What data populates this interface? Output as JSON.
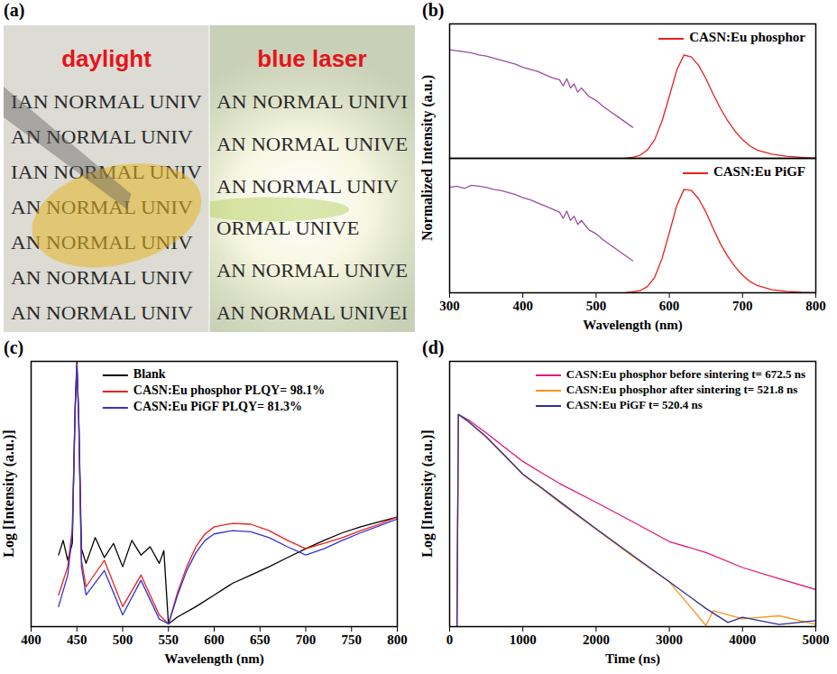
{
  "chart_data": [
    {
      "type": "photo",
      "panel_label": "(a)",
      "annotations": [
        "daylight",
        "blue laser"
      ],
      "left_text": [
        "IAN NORMAL UNIV",
        "AN NORMAL UNIV",
        "IAN NORMAL UNIV",
        "AN NORMAL UNIV",
        "AN NORMAL UNIV",
        "AN NORMAL UNIV",
        "AN NORMAL UNIV"
      ],
      "right_text": [
        "AN NORMAL UNIVI",
        "AN NORMAL UNIVE",
        "AN NORMAL UNIV",
        "ORMAL UNIVE",
        "AN NORMAL UNIVE",
        "AN NORMAL UNIVEI"
      ]
    },
    {
      "type": "line",
      "panel_label": "(b)",
      "xlabel": "Wavelength (nm)",
      "ylabel": "Normalized Intensity (a.u.)",
      "xlim": [
        300,
        800
      ],
      "xticks": [
        300,
        400,
        500,
        600,
        700,
        800
      ],
      "ylim": [
        0,
        1.3
      ],
      "tick_labels": "x",
      "legend": "upper right",
      "subplots": [
        {
          "series": [
            {
              "color": "#9b4f9e",
              "x": [
                300,
                310,
                320,
                330,
                340,
                350,
                360,
                370,
                380,
                390,
                400,
                410,
                420,
                430,
                440,
                450,
                455,
                460,
                465,
                470,
                475,
                480,
                490,
                500,
                510,
                520,
                530,
                540,
                550
              ],
              "values": [
                1.05,
                1.04,
                1.03,
                1.02,
                1.0,
                0.99,
                0.97,
                0.95,
                0.93,
                0.91,
                0.88,
                0.86,
                0.84,
                0.81,
                0.78,
                0.76,
                0.7,
                0.77,
                0.68,
                0.72,
                0.64,
                0.68,
                0.6,
                0.56,
                0.5,
                0.45,
                0.4,
                0.35,
                0.3
              ]
            },
            {
              "name": "CASN:Eu phosphor",
              "color": "#e8211e",
              "x": [
                540,
                550,
                560,
                570,
                580,
                590,
                600,
                610,
                620,
                630,
                640,
                650,
                660,
                670,
                680,
                690,
                700,
                710,
                720,
                740,
                760,
                780,
                800
              ],
              "values": [
                0,
                0.01,
                0.03,
                0.08,
                0.18,
                0.36,
                0.6,
                0.85,
                1.0,
                0.98,
                0.9,
                0.77,
                0.62,
                0.48,
                0.36,
                0.26,
                0.18,
                0.12,
                0.08,
                0.04,
                0.02,
                0.01,
                0
              ]
            }
          ]
        },
        {
          "series": [
            {
              "color": "#9b4f9e",
              "x": [
                300,
                310,
                320,
                330,
                340,
                350,
                360,
                370,
                380,
                390,
                400,
                410,
                420,
                430,
                440,
                450,
                455,
                460,
                465,
                470,
                475,
                480,
                490,
                500,
                510,
                520,
                530,
                540,
                550
              ],
              "values": [
                1.02,
                1.03,
                1.01,
                1.04,
                1.03,
                1.02,
                1.0,
                0.99,
                0.97,
                0.95,
                0.92,
                0.9,
                0.87,
                0.84,
                0.81,
                0.78,
                0.72,
                0.79,
                0.7,
                0.74,
                0.66,
                0.7,
                0.61,
                0.57,
                0.51,
                0.46,
                0.41,
                0.36,
                0.31
              ]
            },
            {
              "name": "CASN:Eu PiGF",
              "color": "#e8211e",
              "x": [
                540,
                550,
                560,
                570,
                580,
                590,
                600,
                610,
                620,
                630,
                640,
                650,
                660,
                670,
                680,
                690,
                700,
                710,
                720,
                740,
                760,
                780,
                800
              ],
              "values": [
                0,
                0.01,
                0.02,
                0.06,
                0.15,
                0.33,
                0.58,
                0.84,
                1.0,
                0.99,
                0.91,
                0.78,
                0.62,
                0.47,
                0.35,
                0.25,
                0.17,
                0.11,
                0.07,
                0.03,
                0.015,
                0.005,
                0
              ]
            }
          ]
        }
      ]
    },
    {
      "type": "line",
      "panel_label": "(c)",
      "xlabel": "Wavelength (nm)",
      "ylabel": "Log [Intensity (a.u.)]",
      "xlim": [
        400,
        800
      ],
      "xticks": [
        400,
        450,
        500,
        550,
        600,
        650,
        700,
        750,
        800
      ],
      "ylim": [
        1,
        10000
      ],
      "log": "y",
      "tick_labels": "x",
      "legend": "upper center",
      "series": [
        {
          "name": "Blank",
          "color": "#000000",
          "x": [
            430,
            435,
            440,
            445,
            448,
            450,
            452,
            455,
            460,
            470,
            480,
            490,
            500,
            510,
            520,
            530,
            540,
            545,
            550,
            560,
            580,
            600,
            620,
            640,
            660,
            680,
            700,
            720,
            740,
            760,
            780,
            800
          ],
          "values": [
            12,
            20,
            10,
            18,
            2000,
            10000,
            1500,
            15,
            9,
            22,
            11,
            18,
            8,
            20,
            12,
            16,
            9,
            14,
            1.1,
            1.4,
            2,
            3,
            4.5,
            6,
            8,
            11,
            15,
            20,
            26,
            32,
            38,
            45
          ]
        },
        {
          "name": "CASN:Eu phosphor PLQY= 98.1%",
          "color": "#e8211e",
          "x": [
            430,
            440,
            445,
            448,
            450,
            452,
            455,
            460,
            480,
            500,
            520,
            540,
            550,
            560,
            570,
            580,
            590,
            600,
            620,
            640,
            660,
            680,
            700,
            720,
            740,
            760,
            780,
            800
          ],
          "values": [
            3,
            8,
            30,
            1800,
            9000,
            1400,
            10,
            4,
            10,
            2,
            6,
            1.5,
            1.1,
            3.3,
            8,
            16,
            25,
            32,
            36,
            35,
            28,
            20,
            15,
            18,
            22,
            28,
            35,
            45
          ]
        },
        {
          "name": "CASN:Eu PiGF PLQY= 81.3%",
          "color": "#3333cc",
          "x": [
            430,
            440,
            445,
            448,
            450,
            452,
            455,
            460,
            480,
            500,
            520,
            540,
            550,
            560,
            570,
            580,
            590,
            600,
            620,
            640,
            660,
            680,
            700,
            720,
            740,
            760,
            780,
            800
          ],
          "values": [
            2,
            6,
            25,
            1600,
            8500,
            1300,
            8,
            3,
            7,
            1.5,
            5,
            1.3,
            1.1,
            3,
            7,
            13,
            20,
            25,
            28,
            27,
            22,
            16,
            12,
            15,
            20,
            26,
            33,
            42
          ]
        }
      ]
    },
    {
      "type": "line",
      "panel_label": "(d)",
      "xlabel": "Time (ns)",
      "ylabel": "Log [Intensity (a.u.)]",
      "xlim": [
        0,
        5000
      ],
      "xticks": [
        0,
        1000,
        2000,
        3000,
        4000,
        5000
      ],
      "ylim": [
        1,
        100000
      ],
      "log": "y",
      "tick_labels": "x",
      "legend": "upper right",
      "series": [
        {
          "name": "CASN:Eu phosphor before sintering t= 672.5 ns",
          "color": "#e2177b",
          "x": [
            100,
            120,
            250,
            500,
            750,
            1000,
            1250,
            1500,
            2000,
            2500,
            3000,
            3500,
            4000,
            4500,
            5000
          ],
          "values": [
            1,
            10000,
            8000,
            4500,
            2400,
            1300,
            800,
            500,
            220,
            95,
            40,
            25,
            13,
            8,
            5
          ]
        },
        {
          "name": "CASN:Eu phosphor after sintering t= 521.8 ns",
          "color": "#f7941d",
          "x": [
            100,
            120,
            250,
            500,
            750,
            1000,
            1250,
            1500,
            2000,
            2500,
            3000,
            3500,
            3600,
            4000,
            4500,
            5000
          ],
          "values": [
            1,
            10000,
            7400,
            3700,
            1650,
            730,
            410,
            220,
            68,
            21,
            7,
            1.05,
            2,
            1.4,
            1.6,
            1.1
          ]
        },
        {
          "name": "CASN:Eu PiGF t= 520.4 ns",
          "color": "#2e3192",
          "x": [
            100,
            120,
            250,
            500,
            750,
            1000,
            1250,
            1500,
            2000,
            2500,
            3000,
            3500,
            3800,
            4000,
            4500,
            5000
          ],
          "values": [
            1,
            10000,
            7500,
            3800,
            1700,
            750,
            420,
            230,
            70,
            22,
            7,
            2.2,
            1.2,
            1.5,
            1.1,
            1.3
          ]
        }
      ]
    }
  ]
}
